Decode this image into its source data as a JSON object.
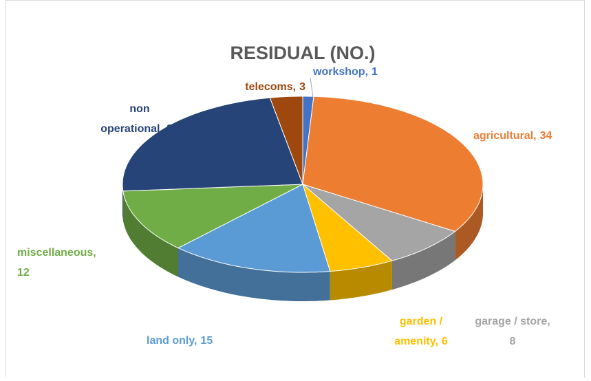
{
  "chart_data": {
    "type": "pie",
    "title": "RESIDUAL (NO.)",
    "categories": [
      "workshop,",
      "agricultural,",
      "garage / store,",
      "garden / amenity,",
      "land only,",
      "miscellaneous,",
      "non operational,",
      "telecoms,"
    ],
    "values": [
      1,
      34,
      8,
      6,
      15,
      12,
      24,
      3
    ],
    "colors": [
      "#4472c4",
      "#ed7d31",
      "#a5a5a5",
      "#ffc000",
      "#5b9bd5",
      "#70ad47",
      "#264478",
      "#9e480e"
    ],
    "three_d": true,
    "start": "top",
    "direction": "clockwise"
  }
}
